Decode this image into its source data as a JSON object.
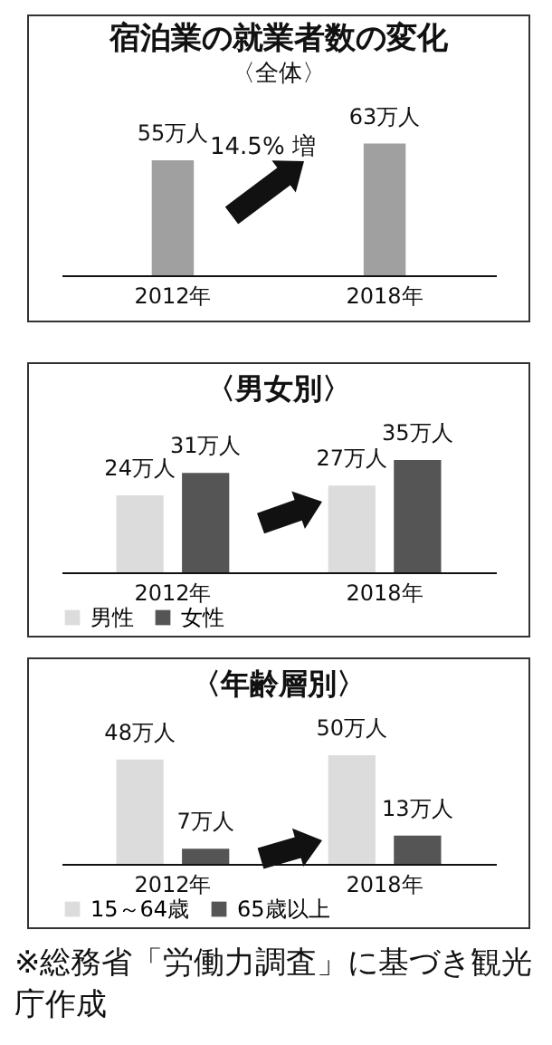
{
  "chart_data": [
    {
      "type": "bar",
      "title": "宿泊業の就業者数の変化",
      "subtitle": "〈全体〉",
      "annotations": [
        "14.5% 増"
      ],
      "categories": [
        "2012年",
        "2018年"
      ],
      "values": [
        55,
        63
      ],
      "value_labels": [
        "55万人",
        "63万人"
      ],
      "color": "#a0a0a0"
    },
    {
      "type": "bar",
      "title": "〈男女別〉",
      "categories": [
        "2012年",
        "2018年"
      ],
      "legend": "bottom",
      "series": [
        {
          "name": "男性",
          "color": "#dcdcdc",
          "values": [
            24,
            27
          ],
          "value_labels": [
            "24万人",
            "27万人"
          ]
        },
        {
          "name": "女性",
          "color": "#555555",
          "values": [
            31,
            35
          ],
          "value_labels": [
            "31万人",
            "35万人"
          ]
        }
      ]
    },
    {
      "type": "bar",
      "title": "〈年齢層別〉",
      "categories": [
        "2012年",
        "2018年"
      ],
      "legend": "bottom",
      "annotations": [
        "※総務省「労働力調査」に基づき観光庁作成"
      ],
      "series": [
        {
          "name": "15～64歳",
          "color": "#dcdcdc",
          "values": [
            48,
            50
          ],
          "value_labels": [
            "48万人",
            "50万人"
          ]
        },
        {
          "name": "65歳以上",
          "color": "#555555",
          "values": [
            7,
            13
          ],
          "value_labels": [
            "7万人",
            "13万人"
          ]
        }
      ]
    }
  ]
}
